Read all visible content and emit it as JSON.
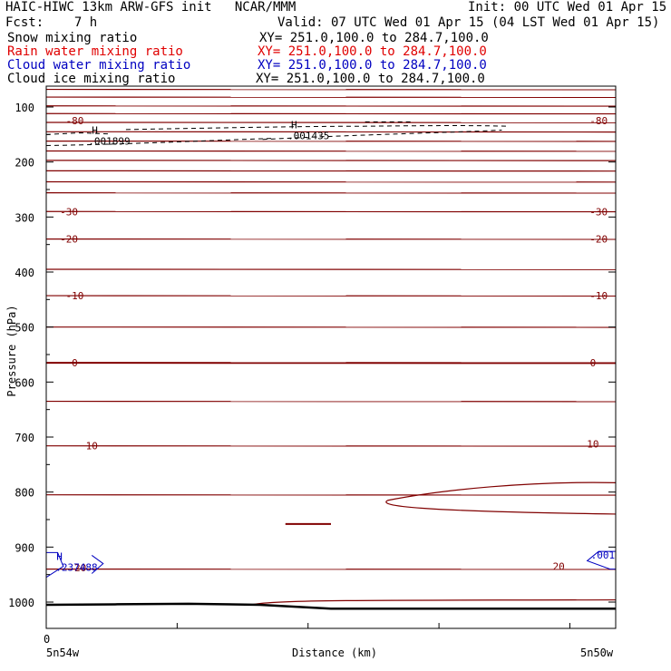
{
  "header": {
    "model_line": "HAIC-HIWC 13km ARW-GFS init   NCAR/MMM",
    "init": "Init: 00 UTC Wed 01 Apr 15",
    "fcst": "Fcst:    7 h",
    "valid": "Valid: 07 UTC Wed 01 Apr 15 (04 LST Wed 01 Apr 15)"
  },
  "legend": [
    {
      "name": "Snow mixing ratio",
      "xy": "XY= 251.0,100.0 to 284.7,100.0",
      "color": "#000000"
    },
    {
      "name": "Rain water mixing ratio",
      "xy": "XY= 251.0,100.0 to 284.7,100.0",
      "color": "#e00000"
    },
    {
      "name": "Cloud water mixing ratio",
      "xy": "XY= 251.0,100.0 to 284.7,100.0",
      "color": "#0000c0"
    },
    {
      "name": "Cloud ice mixing ratio",
      "xy": "XY= 251.0,100.0 to 284.7,100.0",
      "color": "#000000"
    }
  ],
  "colors": {
    "temperature": "#800000",
    "snow": "#000000",
    "cloud_water": "#0000c0",
    "terrain": "#000000"
  },
  "chart_data": {
    "type": "line",
    "ylabel": "Pressure (hPa)",
    "xlabel": "Distance (km)",
    "y_reversed": true,
    "ylim": [
      1050,
      50
    ],
    "yticks": [
      100,
      200,
      300,
      400,
      500,
      600,
      700,
      800,
      900,
      1000
    ],
    "ytick_labels": [
      "100",
      "200",
      "300",
      "400",
      "500",
      "600",
      "700",
      "800",
      "900",
      "1000"
    ],
    "x_start_label": "5n54w",
    "x_end_label": "5n50w",
    "x_zero_label": "0",
    "temperature_contour_labels": [
      {
        "value": "-80",
        "pressure": 125,
        "x_frac": 0.05
      },
      {
        "value": "-80",
        "pressure": 125,
        "x_frac": 0.97
      },
      {
        "value": "-30",
        "pressure": 290,
        "x_frac": 0.04
      },
      {
        "value": "-30",
        "pressure": 290,
        "x_frac": 0.97
      },
      {
        "value": "-20",
        "pressure": 340,
        "x_frac": 0.04
      },
      {
        "value": "-20",
        "pressure": 340,
        "x_frac": 0.97
      },
      {
        "value": "-10",
        "pressure": 443,
        "x_frac": 0.05
      },
      {
        "value": "-10",
        "pressure": 443,
        "x_frac": 0.97
      },
      {
        "value": "0",
        "pressure": 565,
        "x_frac": 0.05
      },
      {
        "value": "0",
        "pressure": 565,
        "x_frac": 0.96
      },
      {
        "value": "10",
        "pressure": 716,
        "x_frac": 0.08
      },
      {
        "value": "10",
        "pressure": 712,
        "x_frac": 0.96
      },
      {
        "value": "20",
        "pressure": 937,
        "x_frac": 0.06
      },
      {
        "value": "20",
        "pressure": 935,
        "x_frac": 0.9
      }
    ],
    "temperature_isotherm_pressures": [
      68,
      82,
      98,
      112,
      128,
      145,
      162,
      180,
      197,
      216,
      236,
      256,
      290,
      340,
      395,
      443,
      500,
      565,
      635,
      716,
      805,
      940
    ],
    "snow_maxima": [
      {
        "label": "H",
        "value": ".001899",
        "pressure": 155,
        "x_frac": 0.08
      },
      {
        "label": "H",
        "value": ".001435",
        "pressure": 145,
        "x_frac": 0.43
      }
    ],
    "cloud_water_maxima": [
      {
        "label": "H",
        "value": ".237488",
        "pressure": 930,
        "x_frac": 0.01
      },
      {
        "label": "",
        "value": ".001",
        "pressure": 908,
        "x_frac": 0.95
      }
    ],
    "terrain_pressure": [
      1005,
      1004,
      1003,
      1005,
      1012,
      1012,
      1012,
      1012,
      1012
    ]
  }
}
